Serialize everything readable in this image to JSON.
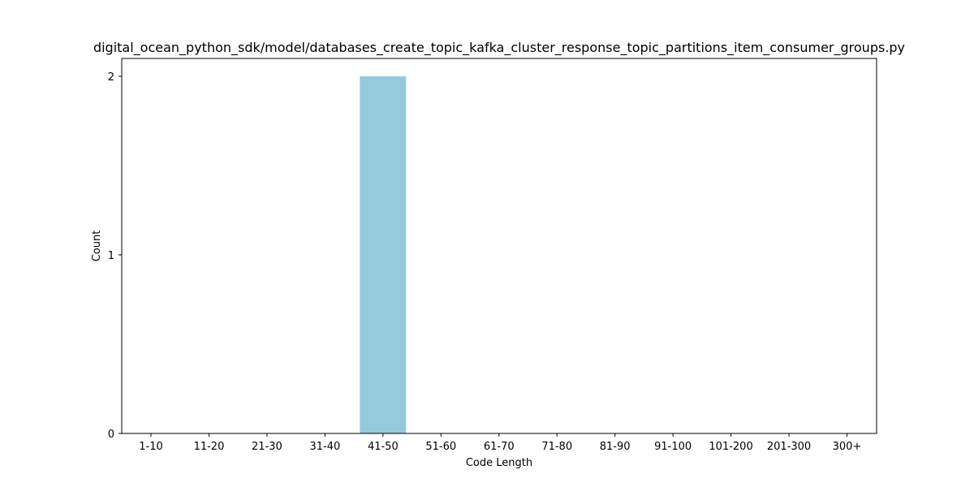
{
  "chart_data": {
    "type": "bar",
    "title": "digital_ocean_python_sdk/model/databases_create_topic_kafka_cluster_response_topic_partitions_item_consumer_groups.py",
    "xlabel": "Code Length",
    "ylabel": "Count",
    "categories": [
      "1-10",
      "11-20",
      "21-30",
      "31-40",
      "41-50",
      "51-60",
      "61-70",
      "71-80",
      "81-90",
      "91-100",
      "101-200",
      "201-300",
      "300+"
    ],
    "values": [
      0,
      0,
      0,
      0,
      2,
      0,
      0,
      0,
      0,
      0,
      0,
      0,
      0
    ],
    "ylim": [
      0,
      2.1
    ],
    "yticks": [
      "0",
      "1",
      "2"
    ],
    "bar_color": "#96c9dc",
    "grid": false,
    "legend": "none"
  }
}
